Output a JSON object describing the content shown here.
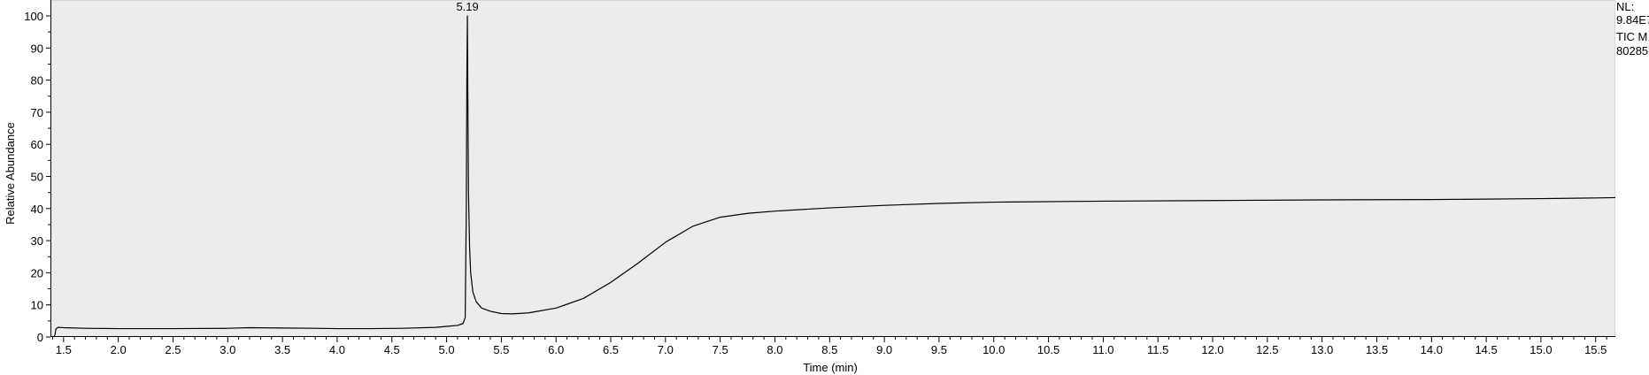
{
  "chart_data": {
    "type": "line",
    "xlabel": "Time (min)",
    "ylabel": "Relative Abundance",
    "xlim": [
      1.38,
      15.68
    ],
    "ylim": [
      0,
      100
    ],
    "xticks": [
      "1.5",
      "2.0",
      "2.5",
      "3.0",
      "3.5",
      "4.0",
      "4.5",
      "5.0",
      "5.5",
      "6.0",
      "6.5",
      "7.0",
      "7.5",
      "8.0",
      "8.5",
      "9.0",
      "9.5",
      "10.0",
      "10.5",
      "11.0",
      "11.5",
      "12.0",
      "12.5",
      "13.0",
      "13.5",
      "14.0",
      "14.5",
      "15.0",
      "15.5"
    ],
    "yticks": [
      "0",
      "10",
      "20",
      "30",
      "40",
      "50",
      "60",
      "70",
      "80",
      "90",
      "100"
    ],
    "peak_label": "5.19",
    "side_info": [
      "NL:",
      "9.84E7",
      "TIC  M",
      "80285"
    ],
    "grid": false,
    "background": "#ececec",
    "trace_color": "#000000",
    "series": [
      {
        "x": [
          1.41,
          1.42,
          1.43,
          1.45,
          1.5,
          1.7,
          2.0,
          2.5,
          3.0,
          3.2,
          3.5,
          3.8,
          4.0,
          4.3,
          4.6,
          4.9,
          5.1,
          5.15,
          5.17,
          5.18,
          5.185,
          5.19,
          5.195,
          5.2,
          5.21,
          5.22,
          5.24,
          5.27,
          5.32,
          5.4,
          5.5,
          5.6,
          5.75,
          6.0,
          6.25,
          6.5,
          6.75,
          7.0,
          7.25,
          7.5,
          7.75,
          8.0,
          8.5,
          9.0,
          9.5,
          10.0,
          11.0,
          12.0,
          13.0,
          14.0,
          15.0,
          15.5,
          15.68
        ],
        "y": [
          0,
          0.5,
          2.5,
          3,
          2.9,
          2.7,
          2.6,
          2.6,
          2.7,
          2.9,
          2.8,
          2.7,
          2.6,
          2.6,
          2.7,
          3.0,
          3.6,
          4.2,
          6,
          40,
          80,
          100,
          70,
          45,
          28,
          20,
          14,
          11,
          9,
          8,
          7.3,
          7.2,
          7.5,
          9,
          12,
          17,
          23,
          29.5,
          34.5,
          37.3,
          38.5,
          39.2,
          40.2,
          41,
          41.6,
          42,
          42.3,
          42.5,
          42.7,
          42.8,
          43.1,
          43.3,
          43.4
        ]
      }
    ]
  }
}
